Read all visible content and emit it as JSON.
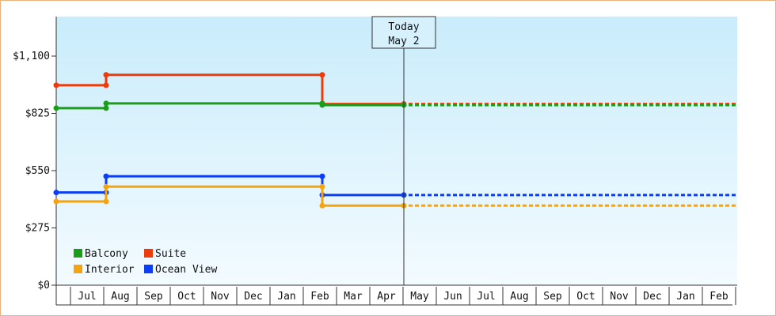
{
  "chart_data": {
    "type": "line",
    "step": true,
    "x_categories": [
      "Jul",
      "Aug",
      "Sep",
      "Oct",
      "Nov",
      "Dec",
      "Jan",
      "Feb",
      "Mar",
      "Apr",
      "May",
      "Jun",
      "Jul",
      "Aug",
      "Sep",
      "Oct",
      "Nov",
      "Dec",
      "Jan",
      "Feb"
    ],
    "y_ticks": [
      "$0",
      "$275",
      "$550",
      "$825",
      "$1,100"
    ],
    "ylim": [
      0,
      1100
    ],
    "today_marker": {
      "label": "Today",
      "date": "May 2",
      "x": 10.0
    },
    "series": [
      {
        "name": "Suite",
        "color": "#ee3b0c",
        "points": [
          [
            -0.5,
            960
          ],
          [
            1.0,
            960
          ],
          [
            1.0,
            1010
          ],
          [
            7.5,
            1010
          ],
          [
            7.5,
            870
          ],
          [
            10.0,
            870
          ]
        ],
        "projected_value": 870
      },
      {
        "name": "Balcony",
        "color": "#1a9e18",
        "points": [
          [
            -0.5,
            850
          ],
          [
            1.0,
            850
          ],
          [
            1.0,
            873
          ],
          [
            7.5,
            873
          ],
          [
            7.5,
            865
          ],
          [
            10.0,
            865
          ]
        ],
        "projected_value": 865
      },
      {
        "name": "Ocean View",
        "color": "#0b3ef2",
        "points": [
          [
            -0.5,
            445
          ],
          [
            1.0,
            445
          ],
          [
            1.0,
            523
          ],
          [
            7.5,
            523
          ],
          [
            7.5,
            433
          ],
          [
            10.0,
            433
          ]
        ],
        "projected_value": 433
      },
      {
        "name": "Interior",
        "color": "#f5a40e",
        "points": [
          [
            -0.5,
            402
          ],
          [
            1.0,
            402
          ],
          [
            1.0,
            473
          ],
          [
            7.5,
            473
          ],
          [
            7.5,
            382
          ],
          [
            10.0,
            382
          ]
        ],
        "projected_value": 382
      }
    ],
    "legend": [
      {
        "name": "Balcony",
        "color": "#1a9e18"
      },
      {
        "name": "Suite",
        "color": "#ee3b0c"
      },
      {
        "name": "Interior",
        "color": "#f5a40e"
      },
      {
        "name": "Ocean View",
        "color": "#0b3ef2"
      }
    ],
    "legend_position": "bottom-left"
  }
}
